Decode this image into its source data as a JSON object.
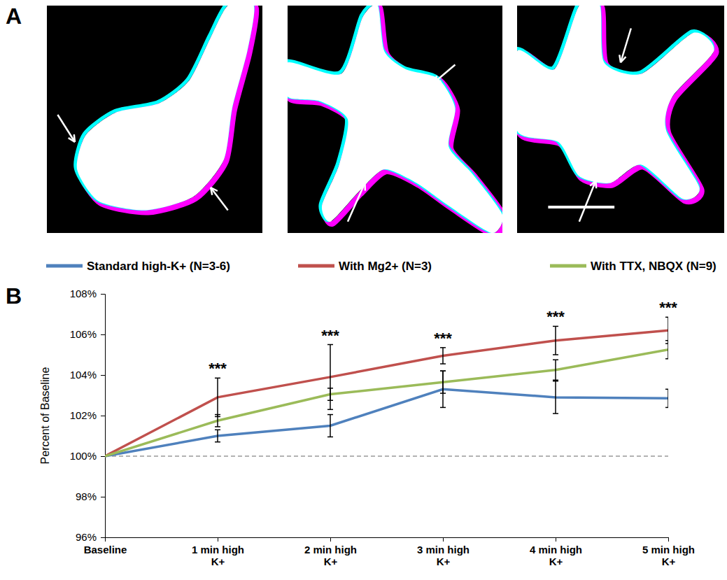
{
  "panel_a": {
    "label": "A"
  },
  "chart_data": {
    "type": "line",
    "label": "B",
    "y_label": "Percent of Baseline",
    "categories": [
      "Baseline",
      "1 min high K+",
      "2 min high K+",
      "3 min high K+",
      "4 min high K+",
      "5 min high K+"
    ],
    "series": [
      {
        "name": "Standard high-K+ (N=3-6)",
        "color": "#4f81bd",
        "values": [
          100,
          101.0,
          101.5,
          103.3,
          102.9,
          102.85
        ],
        "errors": [
          null,
          0.3,
          0.55,
          0.9,
          0.8,
          0.45
        ]
      },
      {
        "name": "With Mg2+ (N=3)",
        "color": "#c0504d",
        "values": [
          100,
          102.9,
          103.9,
          104.95,
          105.7,
          106.2
        ],
        "errors": [
          null,
          0.95,
          1.6,
          0.4,
          0.7,
          0.65
        ]
      },
      {
        "name": "With TTX, NBQX (N=9)",
        "color": "#9bbb59",
        "values": [
          100,
          101.75,
          103.05,
          103.65,
          104.25,
          105.25
        ],
        "errors": [
          null,
          0.3,
          0.3,
          0.55,
          0.5,
          0.45
        ]
      }
    ],
    "ylim": [
      96,
      108
    ],
    "yticks": [
      {
        "value": 96,
        "label": "96%"
      },
      {
        "value": 98,
        "label": "98%"
      },
      {
        "value": 100,
        "label": "100%"
      },
      {
        "value": 102,
        "label": "102%"
      },
      {
        "value": 104,
        "label": "104%"
      },
      {
        "value": 106,
        "label": "106%"
      },
      {
        "value": 108,
        "label": "108%"
      }
    ],
    "reference_line": 100,
    "annotations": [
      {
        "text": "***",
        "category": 1
      },
      {
        "text": "***",
        "category": 2
      },
      {
        "text": "***",
        "category": 3
      },
      {
        "text": "***",
        "category": 4
      },
      {
        "text": "***",
        "category": 5
      }
    ],
    "legend": "top",
    "grid": false
  }
}
